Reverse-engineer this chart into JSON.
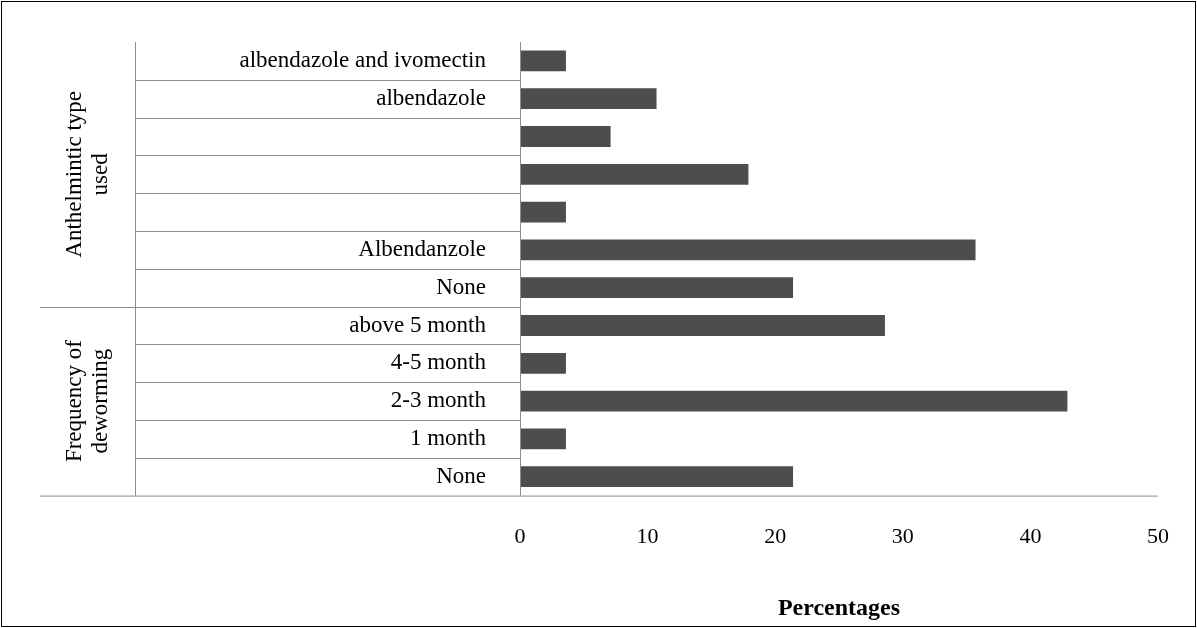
{
  "chart_data": {
    "type": "bar",
    "orientation": "horizontal",
    "xlabel": "Percentages",
    "categories": [
      "albendazole and ivomectin",
      "albendazole",
      null,
      null,
      null,
      "Albendanzole",
      "None",
      "above 5 month",
      "4-5 month",
      "2-3 month",
      "1 month",
      "None"
    ],
    "values": [
      3.6,
      10.7,
      7.1,
      17.9,
      3.6,
      35.7,
      21.4,
      28.6,
      3.6,
      42.9,
      3.6,
      21.4
    ],
    "color": "#4d4d4d",
    "xlim": [
      0,
      50
    ],
    "xticks": [
      0,
      10,
      20,
      30,
      40,
      50
    ],
    "grid": false,
    "legend": false,
    "annotations": [
      "Anthelmintic type used",
      "Frequency of deworming"
    ]
  }
}
